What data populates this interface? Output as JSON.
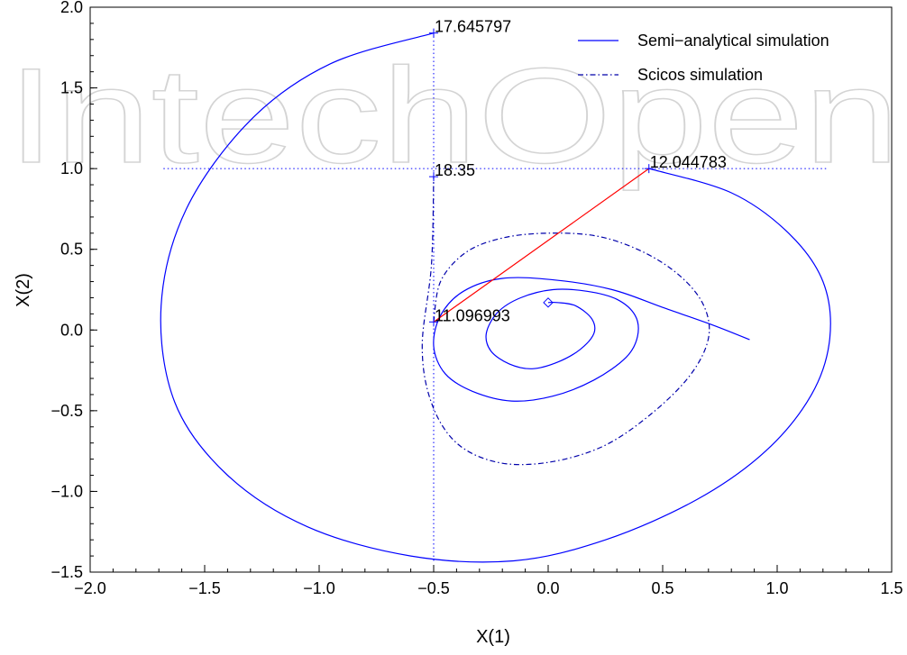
{
  "watermark": "IntechOpen",
  "chart_data": {
    "type": "line",
    "title": "",
    "xlabel": "X(1)",
    "ylabel": "X(2)",
    "xlim": [
      -2.0,
      1.5
    ],
    "ylim": [
      -1.5,
      2.0
    ],
    "xticks": [
      "−2.0",
      "−1.5",
      "−1.0",
      "−0.5",
      "0.0",
      "0.5",
      "1.0",
      "1.5"
    ],
    "yticks": [
      "−1.5",
      "−1.0",
      "−0.5",
      "0.0",
      "0.5",
      "1.0",
      "1.5",
      "2.0"
    ],
    "grid": false,
    "legend_position": "top-right",
    "series": [
      {
        "name": "Semi−analytical simulation",
        "style": "solid",
        "color": "#0000ff",
        "x": [
          0.0,
          0.04,
          0.12,
          0.19,
          0.2,
          0.14,
          0.04,
          -0.07,
          -0.17,
          -0.25,
          -0.27,
          -0.22,
          -0.12,
          0.02,
          0.17,
          0.3,
          0.38,
          0.39,
          0.34,
          0.2,
          0.02,
          -0.16,
          -0.33,
          -0.45,
          -0.5,
          -0.47,
          -0.37,
          -0.2,
          0.03,
          0.28,
          0.5,
          0.72,
          0.88,
          0.44
        ],
        "y": [
          0.17,
          0.17,
          0.15,
          0.07,
          -0.02,
          -0.12,
          -0.2,
          -0.24,
          -0.21,
          -0.13,
          -0.02,
          0.11,
          0.2,
          0.25,
          0.24,
          0.19,
          0.09,
          -0.04,
          -0.17,
          -0.31,
          -0.41,
          -0.44,
          -0.38,
          -0.27,
          -0.1,
          0.09,
          0.24,
          0.32,
          0.31,
          0.25,
          0.14,
          0.03,
          -0.06,
          1.0
        ]
      },
      {
        "name": "Scicos simulation",
        "style": "dash-dot",
        "color": "#0000aa",
        "x": [
          -0.5,
          -0.47,
          -0.36,
          -0.2,
          0.0,
          0.22,
          0.42,
          0.58,
          0.68,
          0.7,
          0.62,
          0.45,
          0.24,
          0.0,
          -0.22,
          -0.4,
          -0.51,
          -0.55,
          -0.51,
          -0.5
        ],
        "y": [
          0.05,
          0.3,
          0.48,
          0.57,
          0.6,
          0.58,
          0.48,
          0.33,
          0.15,
          -0.05,
          -0.28,
          -0.52,
          -0.72,
          -0.82,
          -0.82,
          -0.7,
          -0.45,
          -0.1,
          0.4,
          0.95
        ]
      }
    ],
    "outer_arc": {
      "x": [
        0.44,
        0.8,
        1.05,
        1.2,
        1.23,
        1.15,
        0.95,
        0.65,
        0.25,
        -0.15,
        -0.6,
        -1.05,
        -1.4,
        -1.63,
        -1.69,
        -1.58,
        -1.3,
        -0.95,
        -0.5
      ],
      "y": [
        1.0,
        0.85,
        0.6,
        0.3,
        -0.05,
        -0.4,
        -0.75,
        -1.05,
        -1.3,
        -1.43,
        -1.4,
        -1.22,
        -0.9,
        -0.45,
        0.15,
        0.75,
        1.3,
        1.65,
        1.84
      ]
    },
    "connector": {
      "x": [
        -0.5,
        0.44
      ],
      "y": [
        0.05,
        1.0
      ],
      "color": "#ff0000"
    },
    "reference_lines": {
      "vertical_x": -0.5,
      "vertical_y_range": [
        -1.43,
        1.84
      ],
      "horizontal_y": 1.0,
      "horizontal_x_range": [
        -1.68,
        1.22
      ]
    },
    "markers": [
      {
        "label": "17.645797",
        "x": -0.5,
        "y": 1.84
      },
      {
        "label": "18.35",
        "x": -0.5,
        "y": 0.95
      },
      {
        "label": "12.044783",
        "x": 0.44,
        "y": 1.0
      },
      {
        "label": "11.096993",
        "x": -0.5,
        "y": 0.05
      }
    ],
    "origin_marker": {
      "x": 0.0,
      "y": 0.17
    }
  }
}
